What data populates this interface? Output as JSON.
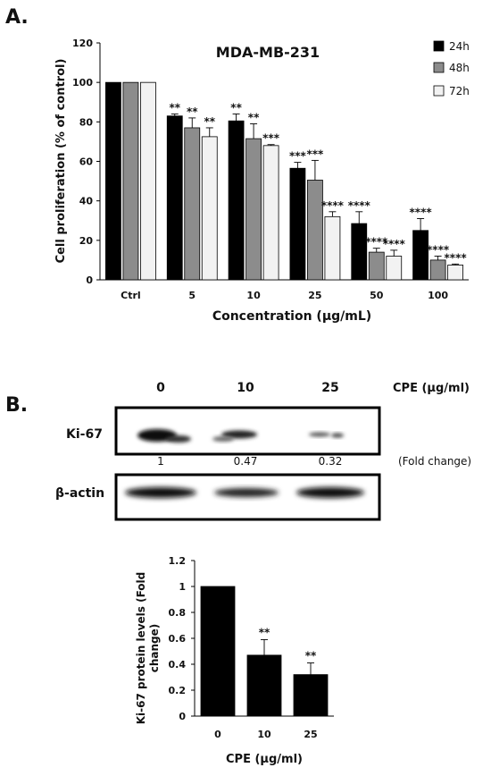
{
  "panels": {
    "a_label": "A.",
    "b_label": "B."
  },
  "colors": {
    "series_24h": "#000000",
    "series_48h": "#8c8c8c",
    "series_72h": "#f2f2f2",
    "bar_b": "#000000"
  },
  "chart_data": [
    {
      "type": "bar",
      "title": "MDA-MB-231",
      "xlabel": "Concentration (µg/mL)",
      "ylabel": "Cell proliferation (% of control)",
      "ylim": [
        0,
        120
      ],
      "yticks": [
        "0",
        "20",
        "40",
        "60",
        "80",
        "100",
        "120"
      ],
      "grid": false,
      "legend_position": "top-right",
      "categories": [
        "Ctrl",
        "5",
        "10",
        "25",
        "50",
        "100"
      ],
      "series": [
        {
          "name": "24h",
          "values": [
            100,
            83,
            80.5,
            56.5,
            28.5,
            25
          ],
          "errors": [
            0,
            1,
            3.5,
            3,
            6,
            6
          ],
          "sig": [
            "",
            "**",
            "**",
            "***",
            "****",
            "****"
          ]
        },
        {
          "name": "48h",
          "values": [
            100,
            77,
            71.5,
            50.5,
            14,
            10
          ],
          "errors": [
            0,
            5,
            7.5,
            10,
            2,
            2
          ],
          "sig": [
            "",
            "**",
            "**",
            "***",
            "****",
            "****"
          ]
        },
        {
          "name": "72h",
          "values": [
            100,
            72.5,
            68,
            32,
            12,
            7.5
          ],
          "errors": [
            0,
            4.5,
            0.5,
            2.5,
            3,
            0.5
          ],
          "sig": [
            "",
            "**",
            "***",
            "****",
            "****",
            "****"
          ]
        }
      ]
    },
    {
      "type": "bar",
      "title": "",
      "xlabel": "CPE (µg/ml)",
      "ylabel": "Ki-67 protein levels (Fold change)",
      "ylim": [
        0,
        1.2
      ],
      "yticks": [
        "0",
        "0.2",
        "0.4",
        "0.6",
        "0.8",
        "1",
        "1.2"
      ],
      "grid": false,
      "categories": [
        "0",
        "10",
        "25"
      ],
      "values": [
        1,
        0.47,
        0.32
      ],
      "errors": [
        0,
        0.12,
        0.09
      ],
      "sig": [
        "",
        "**",
        "**"
      ]
    }
  ],
  "western_blot": {
    "header_label": "CPE (µg/ml)",
    "lanes": [
      "0",
      "10",
      "25"
    ],
    "row1_label": "Ki-67",
    "row2_label": "β-actin",
    "fold_values": [
      "1",
      "0.47",
      "0.32"
    ],
    "fold_label": "(Fold change)"
  }
}
